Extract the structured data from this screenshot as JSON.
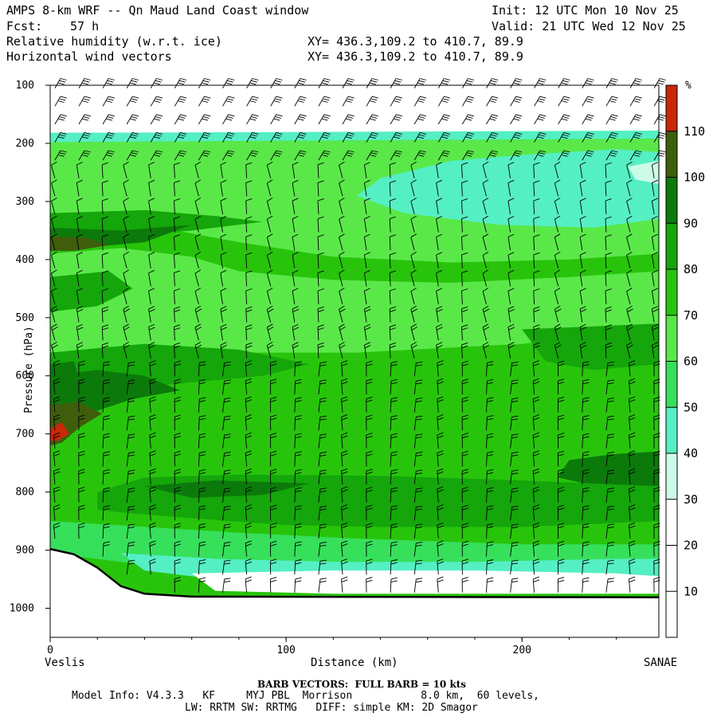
{
  "header": {
    "title": "AMPS 8-km WRF -- Qn Maud Land Coast window",
    "init": "Init: 12 UTC Mon 10 Nov 25",
    "fcst_label": "Fcst:",
    "fcst_value": "57 h",
    "valid": "Valid: 21 UTC Wed 12 Nov 25",
    "field1": "Relative humidity (w.r.t. ice)",
    "field2": "Horizontal wind vectors",
    "xy1": "XY= 436.3,109.2 to 410.7, 89.9",
    "xy2": "XY= 436.3,109.2 to 410.7, 89.9"
  },
  "footer": {
    "barb_note": "BARB VECTORS:  FULL BARB = 10 kts",
    "model_line1": "Model Info: V4.3.3   KF     MYJ PBL  Morrison           8.0 km,  60 levels,",
    "model_line2": "LW: RRTM SW: RRTMG   DIFF: simple KM: 2D Smagor"
  },
  "chart_data": {
    "type": "heatmap",
    "title": "Relative humidity (w.r.t. ice)",
    "xlabel": "Distance (km)",
    "ylabel": "Pressure (hPa)",
    "x_start_label": "Veslis",
    "x_end_label": "SANAE",
    "xlim": [
      0,
      258
    ],
    "ylim": [
      1050,
      100
    ],
    "x_ticks": [
      0,
      100,
      200
    ],
    "y_ticks": [
      100,
      200,
      300,
      400,
      500,
      600,
      700,
      800,
      900,
      1000
    ],
    "colorbar": {
      "unit": "%",
      "levels": [
        10,
        20,
        30,
        40,
        50,
        60,
        70,
        80,
        90,
        100,
        110
      ],
      "colors": [
        "#ffffff",
        "#ffffff",
        "#ffffff",
        "#ccfce8",
        "#55efc4",
        "#36e05b",
        "#5ae849",
        "#28c40c",
        "#14a60a",
        "#0c7a0a",
        "#3e5e0c",
        "#c82808"
      ]
    },
    "terrain_pressure": [
      {
        "x": 0,
        "p": 898
      },
      {
        "x": 10,
        "p": 907
      },
      {
        "x": 20,
        "p": 930
      },
      {
        "x": 30,
        "p": 962
      },
      {
        "x": 40,
        "p": 975
      },
      {
        "x": 60,
        "p": 980
      },
      {
        "x": 258,
        "p": 981
      }
    ],
    "rh_bands": [
      {
        "name": "top-white",
        "rh": 25,
        "top": [
          [
            0,
            100
          ],
          [
            258,
            100
          ]
        ],
        "bottom": [
          [
            0,
            180
          ],
          [
            258,
            178
          ]
        ]
      },
      {
        "name": "upper-cyan",
        "rh": 45,
        "top": [
          [
            0,
            180
          ],
          [
            258,
            178
          ]
        ],
        "bottom": [
          [
            0,
            195
          ],
          [
            258,
            190
          ]
        ]
      },
      {
        "name": "upper-mid",
        "rh": 75,
        "top": [
          [
            0,
            195
          ],
          [
            258,
            190
          ]
        ],
        "bottom": [
          [
            0,
            330
          ],
          [
            100,
            330
          ],
          [
            180,
            360
          ],
          [
            258,
            380
          ]
        ]
      }
    ],
    "wind_barbs_columns": 26,
    "wind_barbs_rows": 30
  }
}
